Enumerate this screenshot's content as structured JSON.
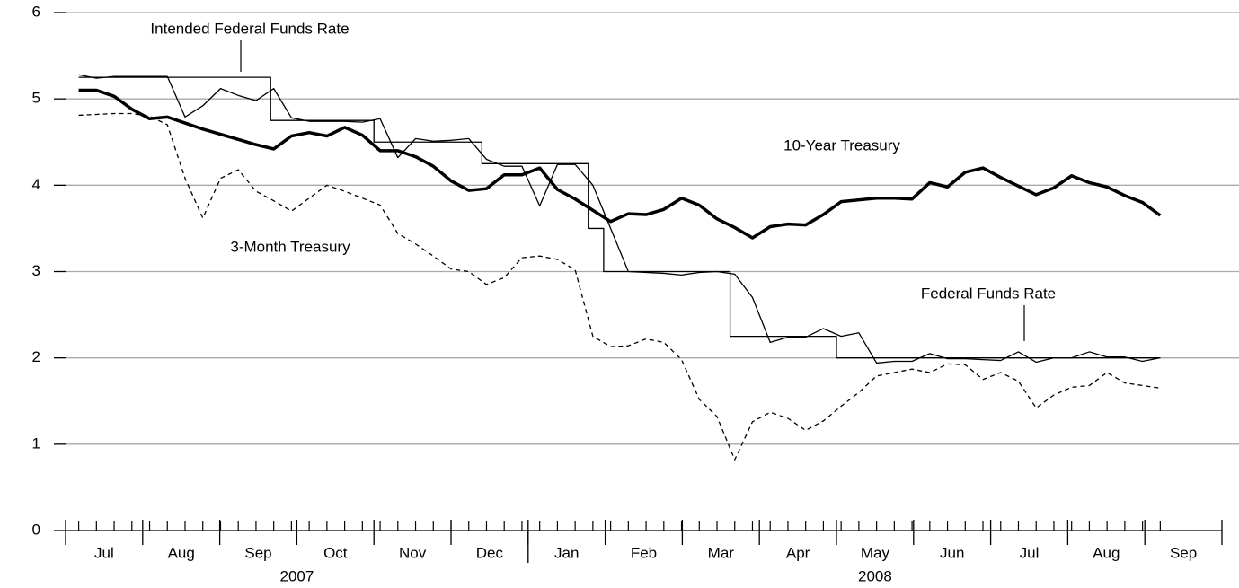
{
  "chart_data": {
    "type": "line",
    "x": [
      0.17,
      0.4,
      0.63,
      0.86,
      1.09,
      1.32,
      1.55,
      1.78,
      2.01,
      2.24,
      2.47,
      2.7,
      2.93,
      3.16,
      3.39,
      3.62,
      3.85,
      4.08,
      4.31,
      4.54,
      4.77,
      5.0,
      5.23,
      5.46,
      5.69,
      5.92,
      6.15,
      6.38,
      6.61,
      6.84,
      7.07,
      7.3,
      7.53,
      7.76,
      7.99,
      8.22,
      8.45,
      8.68,
      8.91,
      9.14,
      9.37,
      9.6,
      9.83,
      10.06,
      10.29,
      10.52,
      10.75,
      10.98,
      11.21,
      11.44,
      11.67,
      11.9,
      12.13,
      12.36,
      12.59,
      12.82,
      13.05,
      13.28,
      13.51,
      13.74,
      13.97,
      14.2
    ],
    "series": [
      {
        "name": "10-Year Treasury",
        "color": "#000000",
        "width": 3.5,
        "dash": false,
        "values": [
          5.1,
          5.1,
          5.03,
          4.88,
          4.77,
          4.79,
          4.72,
          4.65,
          4.59,
          4.53,
          4.47,
          4.42,
          4.57,
          4.61,
          4.57,
          4.67,
          4.58,
          4.4,
          4.4,
          4.33,
          4.22,
          4.05,
          3.94,
          3.96,
          4.12,
          4.12,
          4.2,
          3.95,
          3.84,
          3.71,
          3.58,
          3.67,
          3.66,
          3.72,
          3.85,
          3.77,
          3.61,
          3.51,
          3.39,
          3.52,
          3.55,
          3.54,
          3.66,
          3.81,
          3.83,
          3.85,
          3.85,
          3.84,
          4.03,
          3.98,
          4.15,
          4.2,
          4.09,
          3.99,
          3.89,
          3.97,
          4.11,
          4.03,
          3.98,
          3.88,
          3.8,
          3.65
        ]
      },
      {
        "name": "Federal Funds Rate",
        "color": "#000000",
        "width": 1.3,
        "dash": false,
        "values": [
          5.28,
          5.24,
          5.26,
          5.26,
          5.26,
          5.26,
          4.79,
          4.92,
          5.12,
          5.04,
          4.98,
          5.12,
          4.78,
          4.74,
          4.74,
          4.74,
          4.73,
          4.77,
          4.32,
          4.54,
          4.51,
          4.52,
          4.54,
          4.3,
          4.22,
          4.22,
          3.76,
          4.24,
          4.24,
          4.0,
          3.5,
          3.0,
          2.99,
          2.98,
          2.96,
          2.99,
          3.0,
          2.97,
          2.7,
          2.18,
          2.24,
          2.24,
          2.34,
          2.25,
          2.29,
          1.94,
          1.96,
          1.96,
          2.05,
          1.99,
          1.99,
          1.98,
          1.97,
          2.07,
          1.95,
          2.0,
          2.0,
          2.07,
          2.01,
          2.01,
          1.96,
          2.0
        ]
      },
      {
        "name": "3-Month Treasury",
        "color": "#000000",
        "width": 1.3,
        "dash": true,
        "values": [
          4.81,
          4.82,
          4.83,
          4.83,
          4.8,
          4.7,
          4.08,
          3.62,
          4.08,
          4.18,
          3.93,
          3.82,
          3.7,
          3.85,
          4.0,
          3.93,
          3.85,
          3.77,
          3.44,
          3.32,
          3.18,
          3.03,
          3.0,
          2.85,
          2.93,
          3.16,
          3.18,
          3.14,
          3.02,
          2.25,
          2.13,
          2.14,
          2.22,
          2.18,
          1.98,
          1.52,
          1.32,
          0.82,
          1.26,
          1.37,
          1.3,
          1.16,
          1.27,
          1.44,
          1.6,
          1.79,
          1.83,
          1.87,
          1.83,
          1.93,
          1.92,
          1.75,
          1.83,
          1.73,
          1.42,
          1.57,
          1.66,
          1.68,
          1.83,
          1.71,
          1.68,
          1.65
        ]
      },
      {
        "name": "Intended Federal Funds Rate",
        "color": "#000000",
        "width": 1.3,
        "dash": false,
        "step": true,
        "x": [
          0.17,
          2.66,
          4.0,
          5.4,
          6.78,
          6.98,
          8.62,
          10.0,
          14.2
        ],
        "values": [
          5.25,
          4.75,
          4.5,
          4.25,
          3.5,
          3.0,
          2.25,
          2.0,
          2.0
        ]
      }
    ],
    "xlim": [
      0,
      15
    ],
    "xmajorticks": [
      0,
      1,
      2,
      3,
      4,
      5,
      6,
      7,
      8,
      9,
      10,
      11,
      12,
      13,
      14,
      15
    ],
    "xticks": [
      {
        "value": 0.5,
        "label": "Jul"
      },
      {
        "value": 1.5,
        "label": "Aug"
      },
      {
        "value": 2.5,
        "label": "Sep"
      },
      {
        "value": 3.5,
        "label": "Oct"
      },
      {
        "value": 4.5,
        "label": "Nov"
      },
      {
        "value": 5.5,
        "label": "Dec"
      },
      {
        "value": 6.5,
        "label": "Jan"
      },
      {
        "value": 7.5,
        "label": "Feb"
      },
      {
        "value": 8.5,
        "label": "Mar"
      },
      {
        "value": 9.5,
        "label": "Apr"
      },
      {
        "value": 10.5,
        "label": "May"
      },
      {
        "value": 11.5,
        "label": "Jun"
      },
      {
        "value": 12.5,
        "label": "Jul"
      },
      {
        "value": 13.5,
        "label": "Aug"
      },
      {
        "value": 14.5,
        "label": "Sep"
      }
    ],
    "xgroups": [
      {
        "value": 3,
        "label": "2007"
      },
      {
        "value": 10.5,
        "label": "2008"
      }
    ],
    "xgroup_break": 6,
    "ylim": [
      0,
      6
    ],
    "yticks": [
      0,
      1,
      2,
      3,
      4,
      5,
      6
    ],
    "grid": true
  }
}
